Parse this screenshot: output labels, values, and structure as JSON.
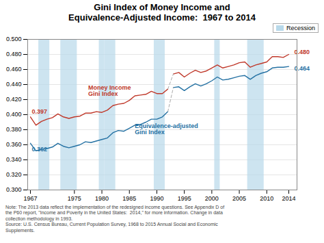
{
  "chart_data": {
    "type": "line",
    "title": "Gini Index of Money Income and\nEquivalence-Adjusted Income:  1967 to 2014",
    "x": [
      1967,
      1968,
      1969,
      1970,
      1971,
      1972,
      1973,
      1974,
      1975,
      1976,
      1977,
      1978,
      1979,
      1980,
      1981,
      1982,
      1983,
      1984,
      1985,
      1986,
      1987,
      1988,
      1989,
      1990,
      1991,
      1992,
      1993,
      1994,
      1995,
      1996,
      1997,
      1998,
      1999,
      2000,
      2001,
      2002,
      2003,
      2004,
      2005,
      2006,
      2007,
      2008,
      2009,
      2010,
      2011,
      2012,
      2013,
      2014
    ],
    "series": [
      {
        "name": "Money Income\nGini Index",
        "color": "#c0392b",
        "line_style": "solid",
        "values": [
          0.397,
          0.386,
          0.391,
          0.394,
          0.396,
          0.401,
          0.397,
          0.395,
          0.397,
          0.398,
          0.402,
          0.402,
          0.404,
          0.403,
          0.406,
          0.412,
          0.414,
          0.415,
          0.419,
          0.425,
          0.426,
          0.427,
          0.431,
          0.428,
          0.428,
          0.434,
          0.454,
          0.456,
          0.45,
          0.455,
          0.459,
          0.456,
          0.458,
          0.462,
          0.466,
          0.462,
          0.464,
          0.466,
          0.469,
          0.47,
          0.463,
          0.466,
          0.468,
          0.47,
          0.477,
          0.477,
          0.476,
          0.48
        ]
      },
      {
        "name": "Equivalence-adjusted\nGini Index",
        "color": "#2471a3",
        "line_style": "solid",
        "values": [
          0.362,
          0.352,
          0.354,
          0.355,
          0.357,
          0.362,
          0.358,
          0.356,
          0.358,
          0.36,
          0.364,
          0.363,
          0.365,
          0.367,
          0.369,
          0.376,
          0.379,
          0.378,
          0.382,
          0.386,
          0.387,
          0.39,
          0.394,
          0.394,
          0.397,
          0.404,
          0.436,
          0.437,
          0.432,
          0.437,
          0.441,
          0.438,
          0.441,
          0.445,
          0.45,
          0.446,
          0.447,
          0.449,
          0.451,
          0.452,
          0.447,
          0.452,
          0.455,
          0.457,
          0.462,
          0.463,
          0.463,
          0.464
        ]
      },
      {
        "color": "#aaaaaa",
        "line_style": "dashed",
        "x": [
          1992,
          1993
        ],
        "values": [
          0.434,
          0.454
        ]
      },
      {
        "color": "#aaaaaa",
        "line_style": "dashed",
        "x": [
          1992,
          1993
        ],
        "values": [
          0.404,
          0.436
        ]
      }
    ],
    "xlim": [
      1966.5,
      2015.5
    ],
    "xticks": [
      1967,
      1975,
      1980,
      1985,
      1990,
      1995,
      2000,
      2005,
      2010,
      2014
    ],
    "ylim": [
      0.3,
      0.5
    ],
    "yticks": [
      {
        "value": 0.3,
        "label": "0.300"
      },
      {
        "value": 0.32,
        "label": "0.320"
      },
      {
        "value": 0.34,
        "label": "0.340"
      },
      {
        "value": 0.36,
        "label": "0.360"
      },
      {
        "value": 0.38,
        "label": "0.380"
      },
      {
        "value": 0.4,
        "label": "0.400"
      },
      {
        "value": 0.42,
        "label": "0.420"
      },
      {
        "value": 0.44,
        "label": "0.440"
      },
      {
        "value": 0.46,
        "label": "0.460"
      },
      {
        "value": 0.48,
        "label": "0.480"
      },
      {
        "value": 0.5,
        "label": "0.500"
      }
    ],
    "grid": "y",
    "legend": "upper right",
    "shaded": {
      "name": "Recession",
      "color": "#b8d9ea",
      "spans": [
        [
          1969,
          1970
        ],
        [
          1973,
          1975
        ],
        [
          1980,
          1980
        ],
        [
          1981,
          1982
        ],
        [
          1990,
          1991
        ],
        [
          2001,
          2001
        ],
        [
          2007,
          2009
        ]
      ]
    },
    "annotations": [
      {
        "text": "Money Income\nGini Index",
        "x": 1977.5,
        "y": 0.432,
        "color": "#c0392b"
      },
      {
        "text": "Equivalence-adjusted\nGini Index",
        "x": 1986,
        "y": 0.381,
        "color": "#2471a3"
      },
      {
        "text": "0.397",
        "x": 1967,
        "y": 0.397,
        "color": "#c0392b"
      },
      {
        "text": "0.362",
        "x": 1967,
        "y": 0.362,
        "color": "#2471a3"
      },
      {
        "text": "0.480",
        "x": 2014,
        "y": 0.48,
        "color": "#c0392b"
      },
      {
        "text": "0.464",
        "x": 2014,
        "y": 0.464,
        "color": "#2471a3"
      }
    ],
    "note": "Note: The 2013 data reflect the implementation of the redesigned income questions. See Appendix D of\nthe P60 report, \"Income and Poverty in the United States:  2014,\" for more information. Change in data\ncollection methodology in 1993.\nSource: U.S. Census Bureau, Current Population Survey, 1968 to 2015 Annual Social and Economic\nSupplements."
  }
}
